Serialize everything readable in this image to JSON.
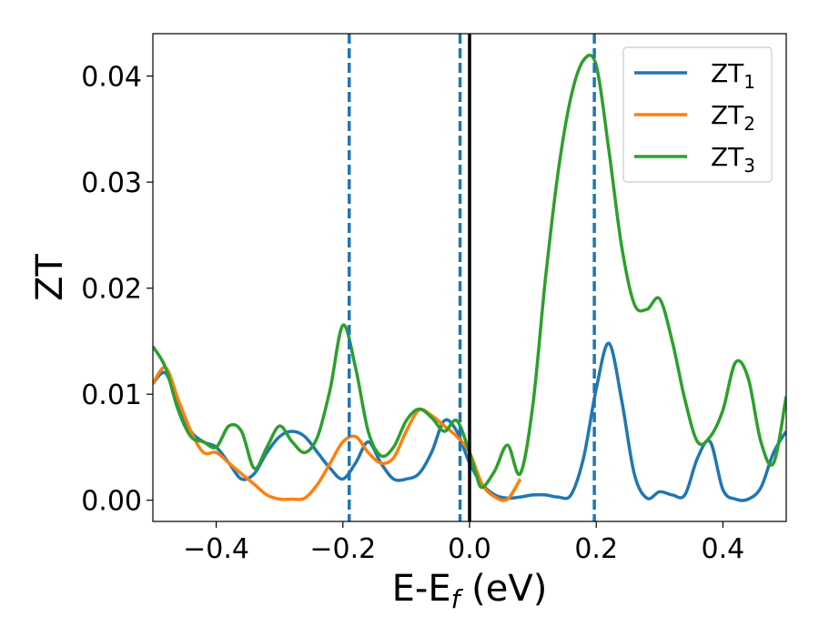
{
  "chart_data": {
    "type": "line",
    "xlabel_main": "E-E",
    "xlabel_sub": "f",
    "xlabel_unit": " (eV)",
    "ylabel": "ZT",
    "xlim": [
      -0.5,
      0.5
    ],
    "ylim": [
      -0.002,
      0.044
    ],
    "xticks": [
      -0.4,
      -0.2,
      0.0,
      0.2,
      0.4
    ],
    "xtick_labels": [
      "−0.4",
      "−0.2",
      "0.0",
      "0.2",
      "0.4"
    ],
    "yticks": [
      0.0,
      0.01,
      0.02,
      0.03,
      0.04
    ],
    "ytick_labels": [
      "0.00",
      "0.01",
      "0.02",
      "0.03",
      "0.04"
    ],
    "grid": false,
    "legend_position": "top-right",
    "vlines": [
      {
        "x": -0.19,
        "style": "dashed",
        "color": "#1f77b4"
      },
      {
        "x": -0.015,
        "style": "dashed",
        "color": "#1f77b4"
      },
      {
        "x": 0.197,
        "style": "dashed",
        "color": "#1f77b4"
      },
      {
        "x": 0.0,
        "style": "solid",
        "color": "#000000"
      }
    ],
    "series": [
      {
        "name": "ZT",
        "sub": "1",
        "color": "#1f77b4",
        "x": [
          -0.5,
          -0.48,
          -0.46,
          -0.44,
          -0.42,
          -0.4,
          -0.38,
          -0.36,
          -0.34,
          -0.32,
          -0.3,
          -0.28,
          -0.26,
          -0.24,
          -0.22,
          -0.2,
          -0.18,
          -0.16,
          -0.14,
          -0.12,
          -0.1,
          -0.08,
          -0.06,
          -0.04,
          -0.02,
          0.0,
          0.02,
          0.04,
          0.06,
          0.08,
          0.1,
          0.12,
          0.14,
          0.16,
          0.18,
          0.2,
          0.22,
          0.24,
          0.26,
          0.28,
          0.3,
          0.32,
          0.34,
          0.36,
          0.38,
          0.4,
          0.42,
          0.44,
          0.46,
          0.48,
          0.5
        ],
        "y": [
          0.011,
          0.012,
          0.009,
          0.0065,
          0.0055,
          0.005,
          0.0035,
          0.002,
          0.0025,
          0.0045,
          0.006,
          0.0065,
          0.006,
          0.0045,
          0.003,
          0.002,
          0.0035,
          0.0055,
          0.0035,
          0.002,
          0.002,
          0.0025,
          0.0045,
          0.0075,
          0.0065,
          0.0035,
          0.0015,
          0.0005,
          0.0002,
          0.0003,
          0.0005,
          0.0005,
          0.0003,
          0.0005,
          0.004,
          0.0105,
          0.0148,
          0.0095,
          0.0025,
          0.0002,
          0.0008,
          0.0005,
          0.0005,
          0.004,
          0.0055,
          0.001,
          0.0001,
          0.0001,
          0.0012,
          0.0045,
          0.0065
        ]
      },
      {
        "name": "ZT",
        "sub": "2",
        "color": "#ff7f0e",
        "x": [
          -0.5,
          -0.48,
          -0.46,
          -0.44,
          -0.42,
          -0.4,
          -0.38,
          -0.36,
          -0.34,
          -0.32,
          -0.3,
          -0.28,
          -0.26,
          -0.24,
          -0.22,
          -0.2,
          -0.18,
          -0.16,
          -0.14,
          -0.12,
          -0.1,
          -0.08,
          -0.06,
          -0.04,
          -0.02,
          0.0,
          0.02,
          0.04,
          0.06,
          0.08
        ],
        "y": [
          0.011,
          0.0125,
          0.0095,
          0.0065,
          0.0045,
          0.0045,
          0.0035,
          0.0025,
          0.0015,
          0.0005,
          0.0001,
          0.0001,
          0.0002,
          0.0015,
          0.0035,
          0.0055,
          0.006,
          0.0045,
          0.0035,
          0.004,
          0.0065,
          0.0085,
          0.008,
          0.007,
          0.006,
          0.0045,
          0.0015,
          0.0003,
          0.0001,
          0.002
        ]
      },
      {
        "name": "ZT",
        "sub": "3",
        "color": "#2ca02c",
        "x": [
          -0.5,
          -0.48,
          -0.46,
          -0.44,
          -0.42,
          -0.4,
          -0.38,
          -0.36,
          -0.34,
          -0.32,
          -0.3,
          -0.28,
          -0.26,
          -0.24,
          -0.22,
          -0.2,
          -0.18,
          -0.16,
          -0.14,
          -0.12,
          -0.1,
          -0.08,
          -0.06,
          -0.04,
          -0.02,
          0.0,
          0.01,
          0.02,
          0.04,
          0.06,
          0.08,
          0.1,
          0.12,
          0.14,
          0.16,
          0.18,
          0.2,
          0.22,
          0.24,
          0.26,
          0.28,
          0.3,
          0.32,
          0.34,
          0.36,
          0.38,
          0.4,
          0.42,
          0.44,
          0.46,
          0.48,
          0.5
        ],
        "y": [
          0.0145,
          0.0125,
          0.0085,
          0.006,
          0.0055,
          0.005,
          0.007,
          0.0065,
          0.003,
          0.005,
          0.007,
          0.0055,
          0.0045,
          0.006,
          0.0105,
          0.0165,
          0.0125,
          0.0065,
          0.0042,
          0.005,
          0.0075,
          0.0086,
          0.0078,
          0.0065,
          0.0075,
          0.0045,
          0.0025,
          0.0012,
          0.0028,
          0.0052,
          0.0025,
          0.009,
          0.021,
          0.031,
          0.038,
          0.0415,
          0.041,
          0.033,
          0.024,
          0.0185,
          0.018,
          0.019,
          0.015,
          0.0095,
          0.0055,
          0.006,
          0.0085,
          0.013,
          0.0115,
          0.0055,
          0.0035,
          0.0098
        ]
      }
    ]
  }
}
